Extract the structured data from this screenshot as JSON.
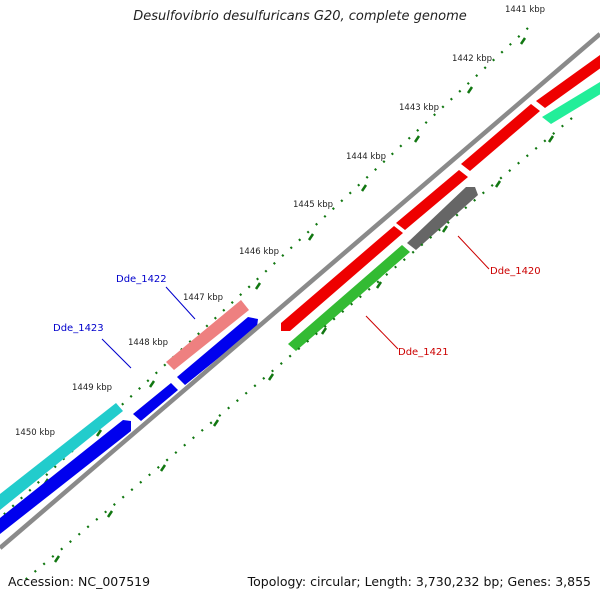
{
  "title": "Desulfovibrio desulfuricans G20, complete genome",
  "accession": "Accession: NC_007519",
  "summary": "Topology: circular; Length: 3,730,232 bp; Genes: 3,855",
  "ticks": [
    "1441 kbp",
    "1442 kbp",
    "1443 kbp",
    "1444 kbp",
    "1445 kbp",
    "1446 kbp",
    "1447 kbp",
    "1448 kbp",
    "1449 kbp",
    "1450 kbp"
  ],
  "gene_labels": {
    "dde_1420": "Dde_1420",
    "dde_1421": "Dde_1421",
    "dde_1422": "Dde_1422",
    "dde_1423": "Dde_1423"
  },
  "colors": {
    "red": "#ee0000",
    "pink": "#ee8080",
    "blue": "#0000ee",
    "cyan": "#22cccc",
    "green": "#33bb33",
    "mint": "#22ee99",
    "gray": "#666666",
    "backbone": "#8a8a8a",
    "tick": "#117711",
    "label_blue": "#0000cc",
    "label_red": "#cc0000"
  }
}
